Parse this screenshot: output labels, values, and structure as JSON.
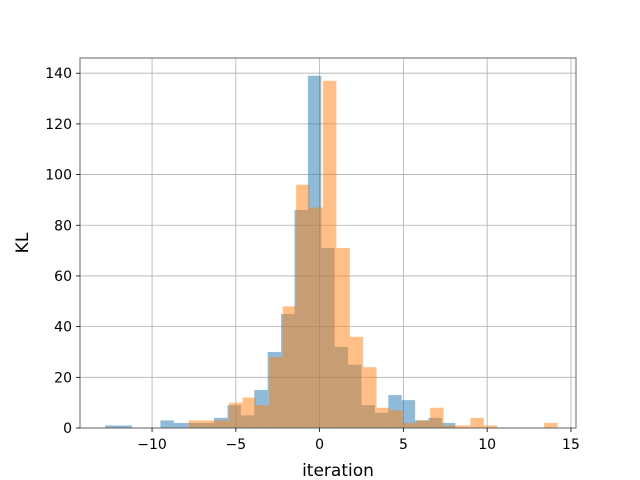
{
  "chart_data": {
    "type": "histogram",
    "xlabel": "iteration",
    "ylabel": "KL",
    "xlim": [
      -14.3,
      15.3
    ],
    "ylim": [
      0,
      146
    ],
    "grid": true,
    "xticks": [
      -10,
      -5,
      0,
      5,
      10,
      15
    ],
    "xtick_labels": [
      "−10",
      "−5",
      "0",
      "5",
      "10",
      "15"
    ],
    "yticks": [
      0,
      20,
      40,
      60,
      80,
      100,
      120,
      140
    ],
    "ytick_labels": [
      "0",
      "20",
      "40",
      "60",
      "80",
      "100",
      "120",
      "140"
    ],
    "series": [
      {
        "color": "#1f77b4",
        "opacity": 0.5,
        "bins": [
          {
            "x0": -12.8,
            "x1": -12.0,
            "count": 1
          },
          {
            "x0": -12.0,
            "x1": -11.2,
            "count": 1
          },
          {
            "x0": -9.5,
            "x1": -8.7,
            "count": 3
          },
          {
            "x0": -8.7,
            "x1": -7.9,
            "count": 2
          },
          {
            "x0": -7.9,
            "x1": -7.1,
            "count": 2
          },
          {
            "x0": -7.1,
            "x1": -6.3,
            "count": 2
          },
          {
            "x0": -6.3,
            "x1": -5.5,
            "count": 4
          },
          {
            "x0": -5.5,
            "x1": -4.7,
            "count": 9
          },
          {
            "x0": -4.7,
            "x1": -3.9,
            "count": 5
          },
          {
            "x0": -3.9,
            "x1": -3.1,
            "count": 15
          },
          {
            "x0": -3.1,
            "x1": -2.3,
            "count": 30
          },
          {
            "x0": -2.3,
            "x1": -1.5,
            "count": 45
          },
          {
            "x0": -1.5,
            "x1": -0.7,
            "count": 86
          },
          {
            "x0": -0.7,
            "x1": 0.1,
            "count": 139
          },
          {
            "x0": 0.1,
            "x1": 0.9,
            "count": 71
          },
          {
            "x0": 0.9,
            "x1": 1.7,
            "count": 32
          },
          {
            "x0": 1.7,
            "x1": 2.5,
            "count": 25
          },
          {
            "x0": 2.5,
            "x1": 3.3,
            "count": 9
          },
          {
            "x0": 3.3,
            "x1": 4.1,
            "count": 6
          },
          {
            "x0": 4.1,
            "x1": 4.9,
            "count": 13
          },
          {
            "x0": 4.9,
            "x1": 5.7,
            "count": 11
          },
          {
            "x0": 5.7,
            "x1": 6.5,
            "count": 3
          },
          {
            "x0": 6.5,
            "x1": 7.3,
            "count": 4
          },
          {
            "x0": 7.3,
            "x1": 8.1,
            "count": 2
          }
        ]
      },
      {
        "color": "#ff7f0e",
        "opacity": 0.5,
        "bins": [
          {
            "x0": -7.8,
            "x1": -7.0,
            "count": 3
          },
          {
            "x0": -7.0,
            "x1": -6.2,
            "count": 3
          },
          {
            "x0": -6.2,
            "x1": -5.4,
            "count": 3
          },
          {
            "x0": -5.4,
            "x1": -4.6,
            "count": 10
          },
          {
            "x0": -4.6,
            "x1": -3.8,
            "count": 12
          },
          {
            "x0": -3.8,
            "x1": -3.0,
            "count": 9
          },
          {
            "x0": -3.0,
            "x1": -2.2,
            "count": 28
          },
          {
            "x0": -2.2,
            "x1": -1.4,
            "count": 48
          },
          {
            "x0": -1.4,
            "x1": -0.6,
            "count": 96
          },
          {
            "x0": -0.6,
            "x1": 0.2,
            "count": 87
          },
          {
            "x0": 0.2,
            "x1": 1.0,
            "count": 137
          },
          {
            "x0": 1.0,
            "x1": 1.8,
            "count": 71
          },
          {
            "x0": 1.8,
            "x1": 2.6,
            "count": 36
          },
          {
            "x0": 2.6,
            "x1": 3.4,
            "count": 24
          },
          {
            "x0": 3.4,
            "x1": 4.2,
            "count": 8
          },
          {
            "x0": 4.2,
            "x1": 5.0,
            "count": 7
          },
          {
            "x0": 5.0,
            "x1": 5.8,
            "count": 2
          },
          {
            "x0": 5.8,
            "x1": 6.6,
            "count": 3
          },
          {
            "x0": 6.6,
            "x1": 7.4,
            "count": 8
          },
          {
            "x0": 7.4,
            "x1": 8.2,
            "count": 1
          },
          {
            "x0": 8.2,
            "x1": 9.0,
            "count": 1
          },
          {
            "x0": 9.0,
            "x1": 9.8,
            "count": 4
          },
          {
            "x0": 9.8,
            "x1": 10.6,
            "count": 1
          },
          {
            "x0": 13.4,
            "x1": 14.2,
            "count": 2
          }
        ]
      }
    ]
  }
}
